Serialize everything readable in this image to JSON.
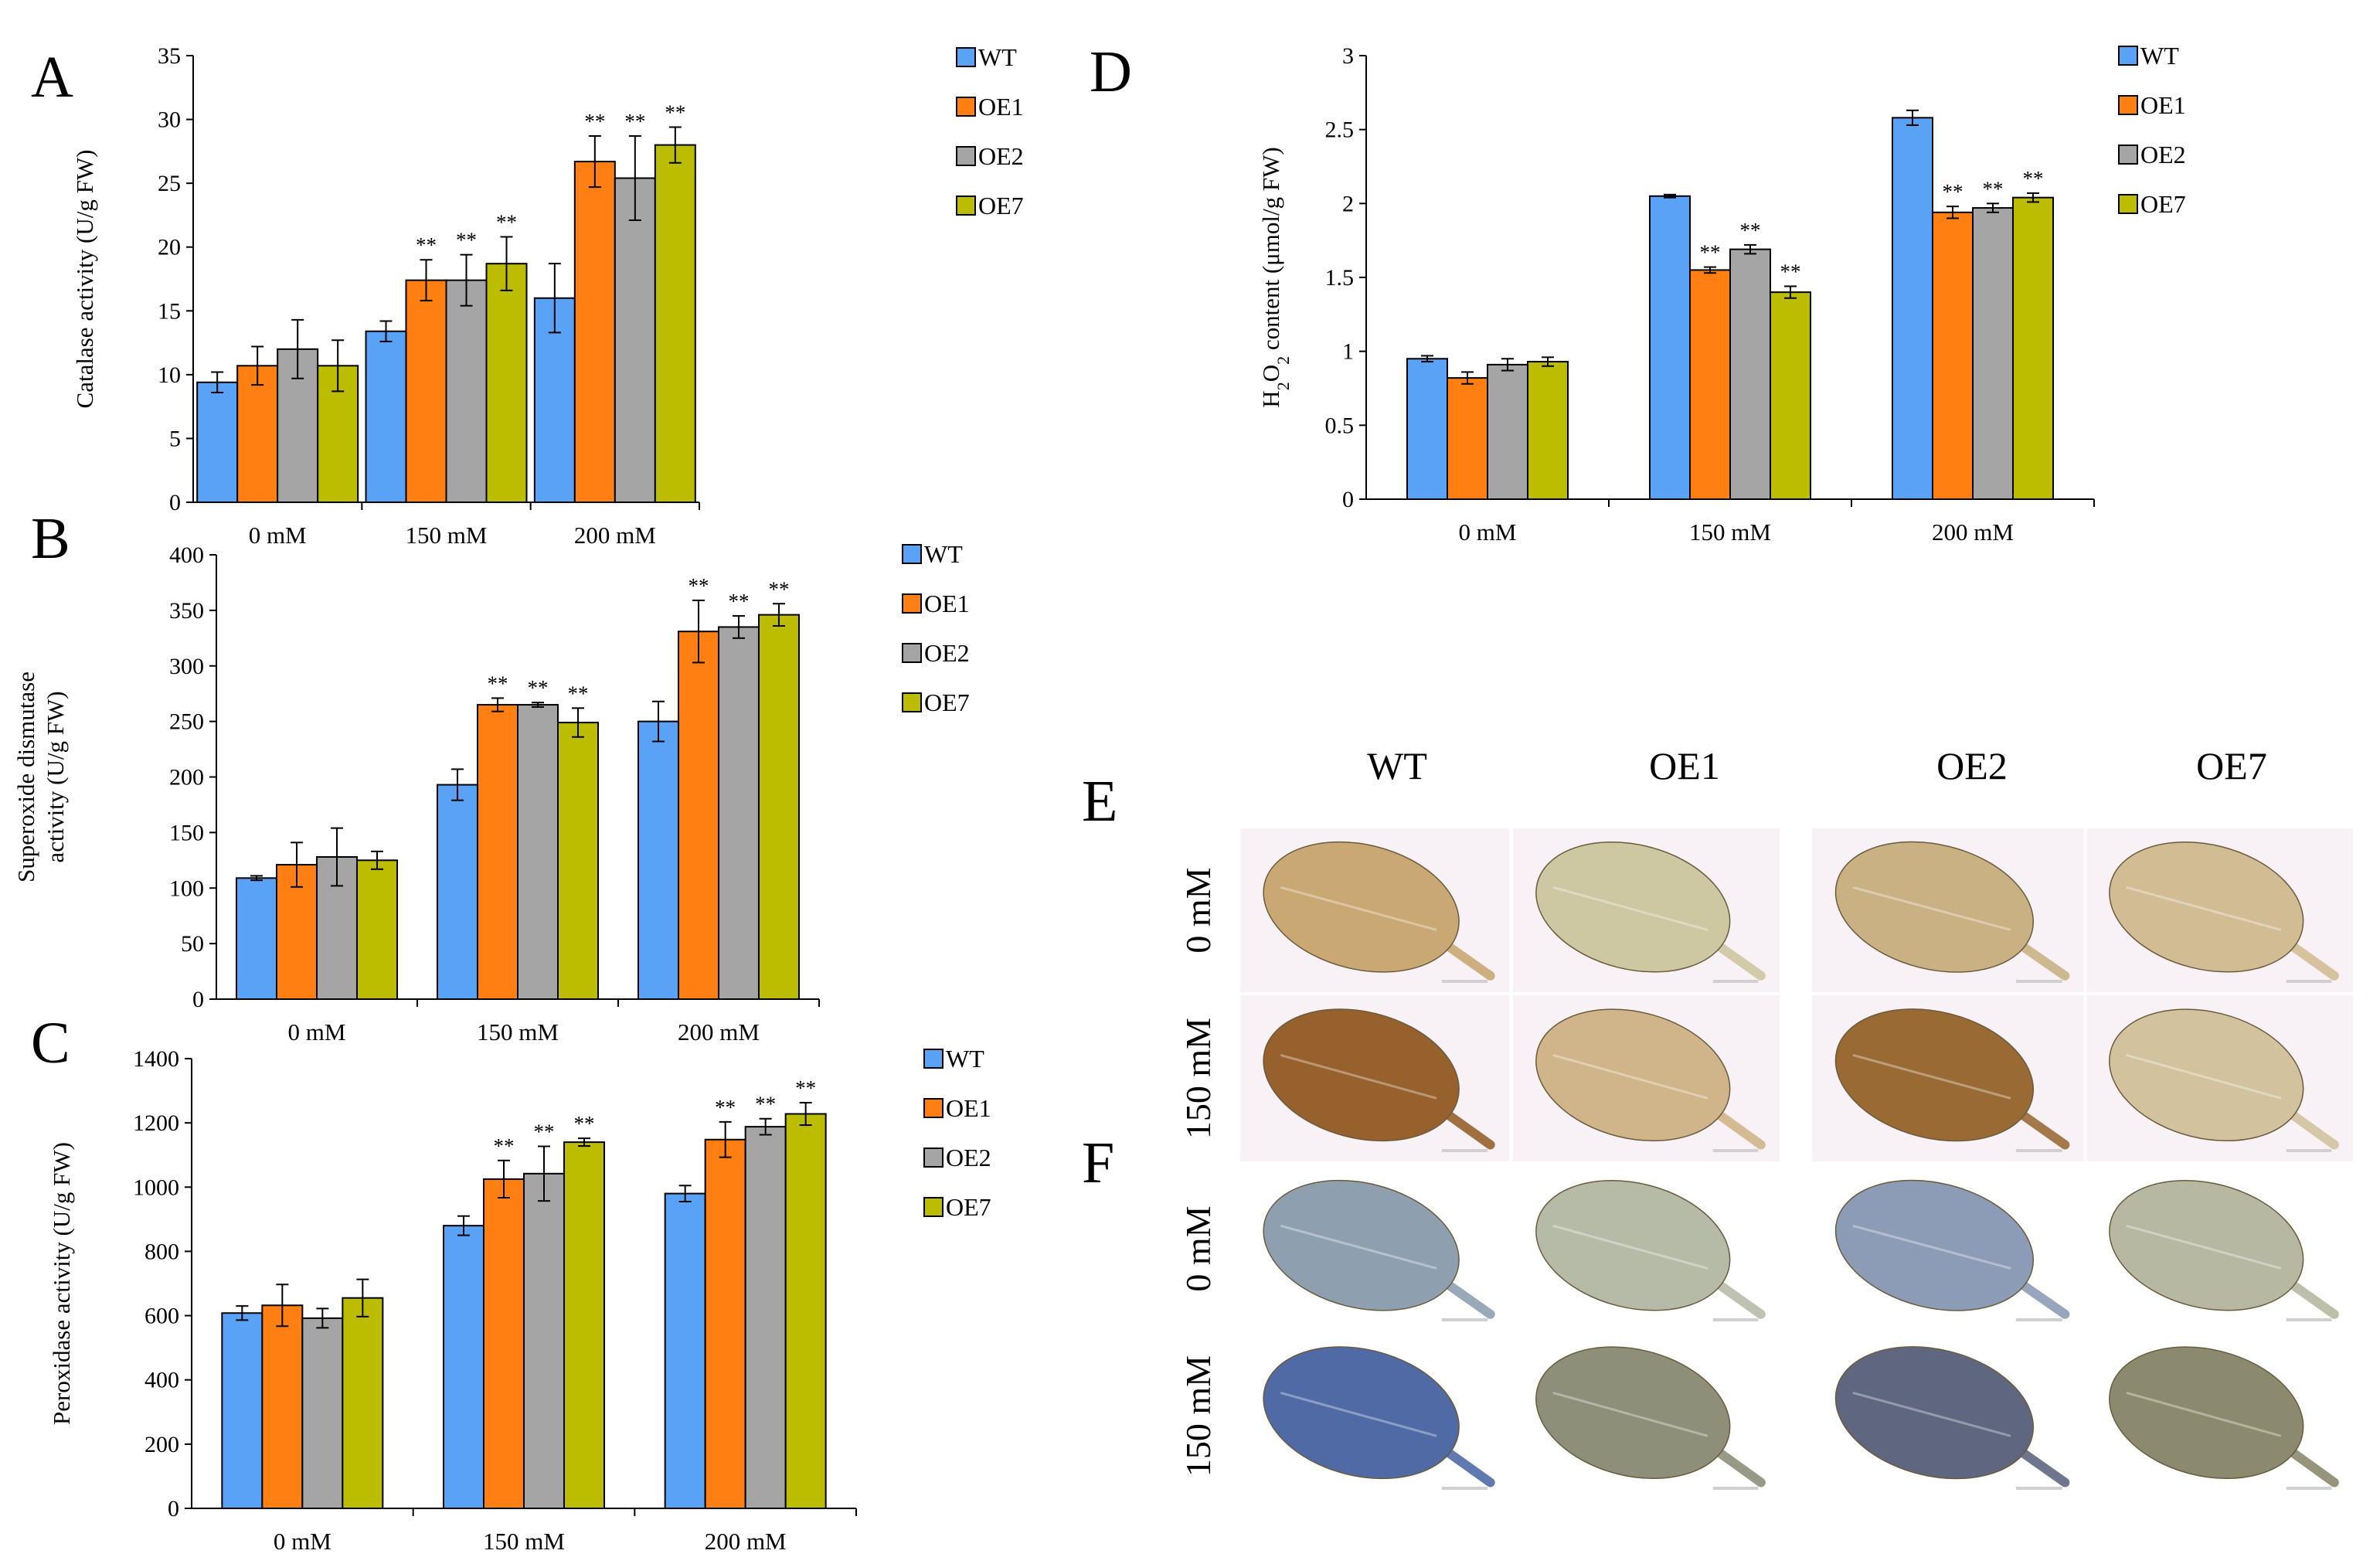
{
  "colors": {
    "WT": "#5aa2f6",
    "OE1": "#ff7f12",
    "OE2": "#a5a5a5",
    "OE7": "#bcbc00"
  },
  "series_names": [
    "WT",
    "OE1",
    "OE2",
    "OE7"
  ],
  "chart_data": [
    {
      "id": "A",
      "type": "bar",
      "letter": "A",
      "ylabel": "Catalase  activity (U/g  FW)",
      "ylim": [
        0,
        35
      ],
      "yticks": [
        0,
        5,
        10,
        15,
        20,
        25,
        30,
        35
      ],
      "categories": [
        "0 mM",
        "150 mM",
        "200 mM"
      ],
      "series": [
        {
          "name": "WT",
          "values": [
            9.4,
            13.4,
            16.0
          ],
          "errors": [
            0.8,
            0.8,
            2.7
          ],
          "sig": [
            "",
            "",
            ""
          ]
        },
        {
          "name": "OE1",
          "values": [
            10.7,
            17.4,
            26.7
          ],
          "errors": [
            1.5,
            1.6,
            2.0
          ],
          "sig": [
            "",
            "**",
            "**"
          ]
        },
        {
          "name": "OE2",
          "values": [
            12.0,
            17.4,
            25.4
          ],
          "errors": [
            2.3,
            2.0,
            3.3
          ],
          "sig": [
            "",
            "**",
            "**"
          ]
        },
        {
          "name": "OE7",
          "values": [
            10.7,
            18.7,
            28.0
          ],
          "errors": [
            2.0,
            2.1,
            1.4
          ],
          "sig": [
            "",
            "**",
            "**"
          ]
        }
      ]
    },
    {
      "id": "B",
      "type": "bar",
      "letter": "B",
      "ylabel": [
        "Superoxide dismutase",
        "activity (U/g  FW)"
      ],
      "ylim": [
        0,
        400
      ],
      "yticks": [
        0,
        50,
        100,
        150,
        200,
        250,
        300,
        350,
        400
      ],
      "categories": [
        "0 mM",
        "150 mM",
        "200 mM"
      ],
      "series": [
        {
          "name": "WT",
          "values": [
            109,
            193,
            250
          ],
          "errors": [
            2,
            14,
            18
          ],
          "sig": [
            "",
            "",
            ""
          ]
        },
        {
          "name": "OE1",
          "values": [
            121,
            265,
            331
          ],
          "errors": [
            20,
            6,
            28
          ],
          "sig": [
            "",
            "**",
            "**"
          ]
        },
        {
          "name": "OE2",
          "values": [
            128,
            265,
            335
          ],
          "errors": [
            26,
            2,
            10
          ],
          "sig": [
            "",
            "**",
            "**"
          ]
        },
        {
          "name": "OE7",
          "values": [
            125,
            249,
            346
          ],
          "errors": [
            8,
            13,
            10
          ],
          "sig": [
            "",
            "**",
            "**"
          ]
        }
      ]
    },
    {
      "id": "C",
      "type": "bar",
      "letter": "C",
      "ylabel": "Peroxidase activity (U/g  FW)",
      "ylim": [
        0,
        1400
      ],
      "yticks": [
        0,
        200,
        400,
        600,
        800,
        1000,
        1200,
        1400
      ],
      "categories": [
        "0 mM",
        "150 mM",
        "200 mM"
      ],
      "series": [
        {
          "name": "WT",
          "values": [
            608,
            880,
            980
          ],
          "errors": [
            22,
            30,
            25
          ],
          "sig": [
            "",
            "",
            ""
          ]
        },
        {
          "name": "OE1",
          "values": [
            632,
            1025,
            1148
          ],
          "errors": [
            65,
            58,
            55
          ],
          "sig": [
            "",
            "**",
            "**"
          ]
        },
        {
          "name": "OE2",
          "values": [
            592,
            1042,
            1188
          ],
          "errors": [
            30,
            85,
            25
          ],
          "sig": [
            "",
            "**",
            "**"
          ]
        },
        {
          "name": "OE7",
          "values": [
            655,
            1140,
            1228
          ],
          "errors": [
            58,
            12,
            35
          ],
          "sig": [
            "",
            "**",
            "**"
          ]
        }
      ]
    },
    {
      "id": "D",
      "type": "bar",
      "letter": "D",
      "ylabel": "H2O2  content (μmol/g  FW)",
      "ylim": [
        0,
        3
      ],
      "yticks": [
        0,
        0.5,
        1,
        1.5,
        2,
        2.5,
        3
      ],
      "categories": [
        "0 mM",
        "150 mM",
        "200 mM"
      ],
      "series": [
        {
          "name": "WT",
          "values": [
            0.95,
            2.05,
            2.58
          ],
          "errors": [
            0.02,
            0.01,
            0.05
          ],
          "sig": [
            "",
            "",
            ""
          ]
        },
        {
          "name": "OE1",
          "values": [
            0.82,
            1.55,
            1.94
          ],
          "errors": [
            0.04,
            0.02,
            0.04
          ],
          "sig": [
            "",
            "**",
            "**"
          ]
        },
        {
          "name": "OE2",
          "values": [
            0.91,
            1.69,
            1.97
          ],
          "errors": [
            0.04,
            0.03,
            0.03
          ],
          "sig": [
            "",
            "**",
            "**"
          ]
        },
        {
          "name": "OE7",
          "values": [
            0.93,
            1.4,
            2.04
          ],
          "errors": [
            0.03,
            0.04,
            0.03
          ],
          "sig": [
            "",
            "**",
            "**"
          ]
        }
      ]
    }
  ],
  "ylabel_D": {
    "prefix": "H",
    "sub1": "2",
    "mid": "O",
    "sub2": "2",
    "suffix": "  content (μmol/g  FW)"
  },
  "photos": {
    "columns": [
      "WT",
      "OE1",
      "OE2",
      "OE7"
    ],
    "panel_E": "E",
    "panel_F": "F",
    "row_labels": [
      "0 mM",
      "150 mM",
      "0 mM",
      "150 mM"
    ],
    "fills": [
      [
        "#c9a873",
        "#cdc7a2",
        "#c9b184",
        "#d2bc94"
      ],
      [
        "#96612c",
        "#d0b58a",
        "#9a6a35",
        "#d2c39e"
      ],
      [
        "#8ea0b0",
        "#b6bba8",
        "#8c9bb6",
        "#b7b8a2"
      ],
      [
        "#4f6aa5",
        "#8e8f78",
        "#5f6680",
        "#8b8a6e"
      ]
    ]
  }
}
